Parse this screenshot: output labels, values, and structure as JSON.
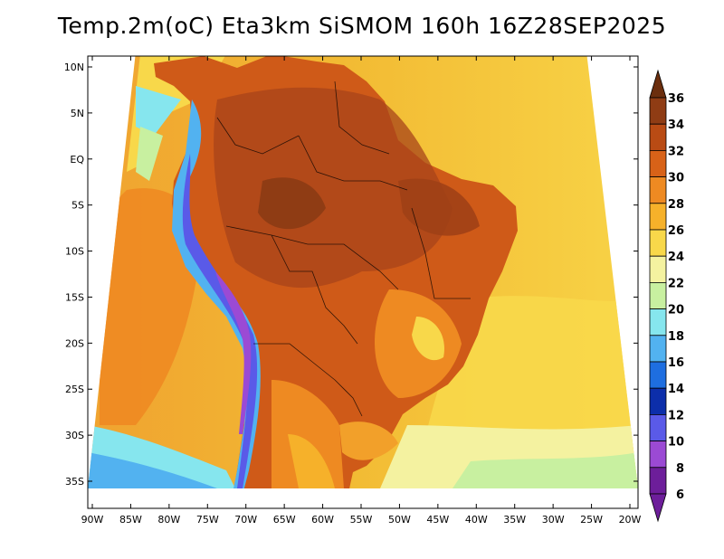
{
  "title": "Temp.2m(oC) Eta3km SiSMOM 160h 16Z28SEP2025",
  "chart_data": {
    "type": "heatmap",
    "variable": "2 m temperature (oC)",
    "lat_ticks": [
      "10N",
      "5N",
      "EQ",
      "5S",
      "10S",
      "15S",
      "20S",
      "25S",
      "30S",
      "35S"
    ],
    "lon_ticks": [
      "90W",
      "85W",
      "80W",
      "75W",
      "70W",
      "65W",
      "60W",
      "55W",
      "50W",
      "45W",
      "40W",
      "35W",
      "30W",
      "25W",
      "20W"
    ],
    "lat_range": [
      -38,
      12
    ],
    "lon_range": [
      -91,
      -20
    ],
    "colorbar_levels": [
      "36",
      "34",
      "32",
      "30",
      "28",
      "26",
      "24",
      "22",
      "20",
      "18",
      "16",
      "14",
      "12",
      "10",
      "8",
      "6"
    ],
    "colorbar_colors": [
      "#6b2e0e",
      "#8f3c14",
      "#b94b14",
      "#d86218",
      "#ee8a22",
      "#f6b12a",
      "#f8d84a",
      "#f4f2a0",
      "#c8f0a0",
      "#86e6ee",
      "#52b2f0",
      "#1e6ee0",
      "#0c2eaa",
      "#5a5ae8",
      "#9b4ad4",
      "#6d1e9a"
    ]
  }
}
